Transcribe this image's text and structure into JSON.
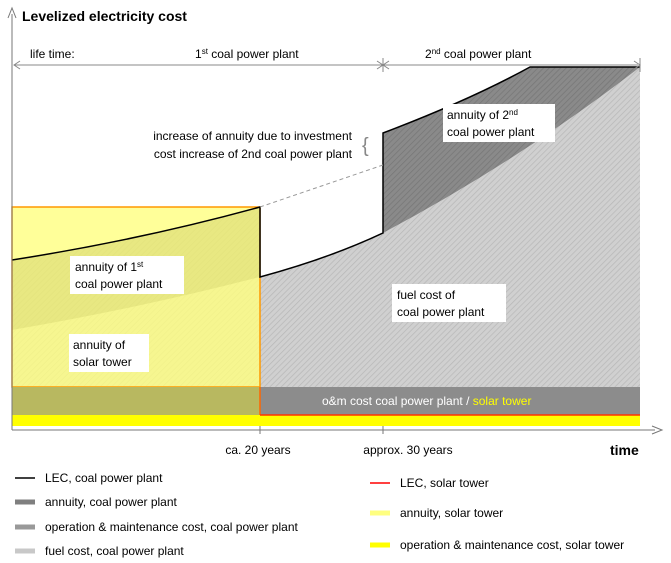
{
  "y_axis_label": "Levelized electricity cost",
  "x_axis_label": "time",
  "lifetime_label": "life time:",
  "plant1": {
    "number": "1",
    "suffix": "st",
    "rest": " coal power plant"
  },
  "plant2": {
    "number": "2",
    "suffix": "nd",
    "rest": " coal power plant"
  },
  "annotation": [
    "increase of annuity due to investment",
    "cost increase of 2nd coal power plant"
  ],
  "regions": {
    "annuity2": {
      "line1_a": "annuity of 2",
      "line1_sup": "nd",
      "line2": "coal power plant"
    },
    "annuity1": {
      "line1_a": "annuity of 1",
      "line1_sup": "st",
      "line2": "coal power plant"
    },
    "fuel": [
      "fuel cost of",
      "coal power plant"
    ],
    "solar": [
      "annuity of",
      "solar tower"
    ],
    "om": {
      "coal": "o&m cost coal power plant /",
      "solar": "solar tower"
    }
  },
  "x_ticks": [
    "ca. 20 years",
    "approx. 30 years"
  ],
  "legend_left": [
    {
      "label": "LEC, coal power plant",
      "color": "#000000"
    },
    {
      "label": "annuity, coal power plant",
      "color": "#7f7f7f"
    },
    {
      "label": "operation & maintenance cost, coal power plant",
      "color": "#999999"
    },
    {
      "label": "fuel cost, coal power plant",
      "color": "#c8c8c8"
    }
  ],
  "legend_right": [
    {
      "label": "LEC, solar tower",
      "color": "#ff0000"
    },
    {
      "label": "annuity, solar tower",
      "color": "#ffff80"
    },
    {
      "label": "operation & maintenance cost, solar tower",
      "color": "#ffff00"
    }
  ]
}
